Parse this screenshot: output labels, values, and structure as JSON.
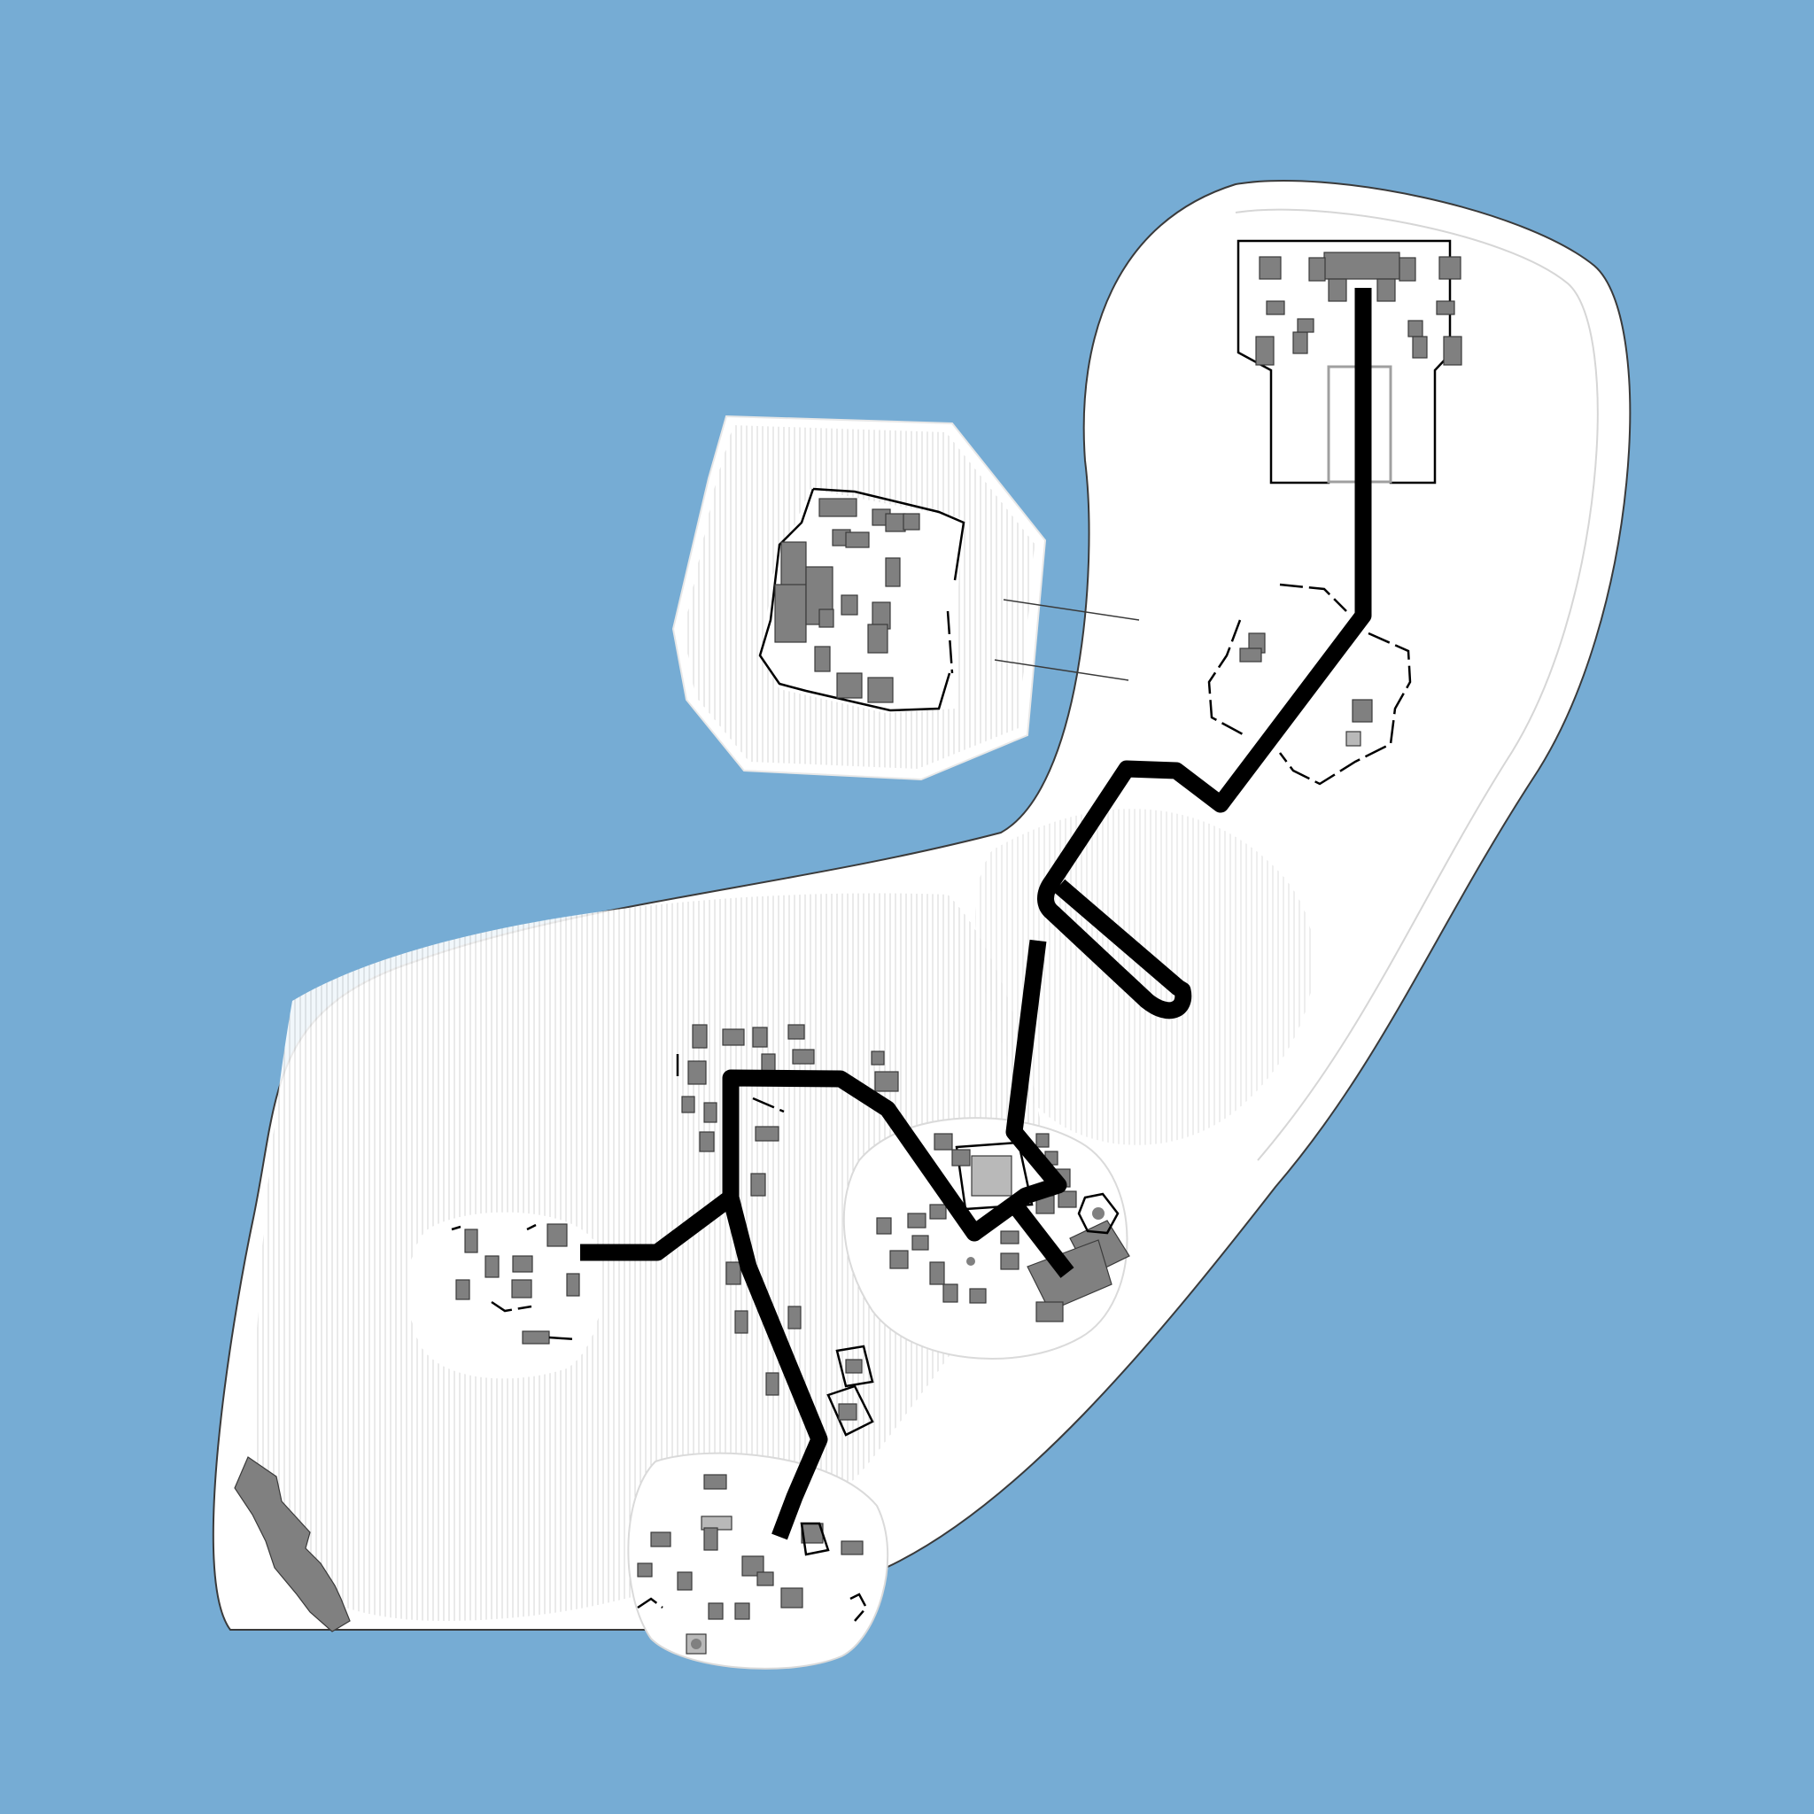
{
  "map": {
    "water_color": "#76acd4",
    "land_color": "#ffffff",
    "terrain_hatch_color": "#c8c8c8",
    "building_color": "#808080",
    "road_color": "#000000",
    "ship_color": "#808080",
    "icons": [
      "building-icon",
      "road-path",
      "wall-fence",
      "ship-icon",
      "tree-dot-icon"
    ]
  }
}
